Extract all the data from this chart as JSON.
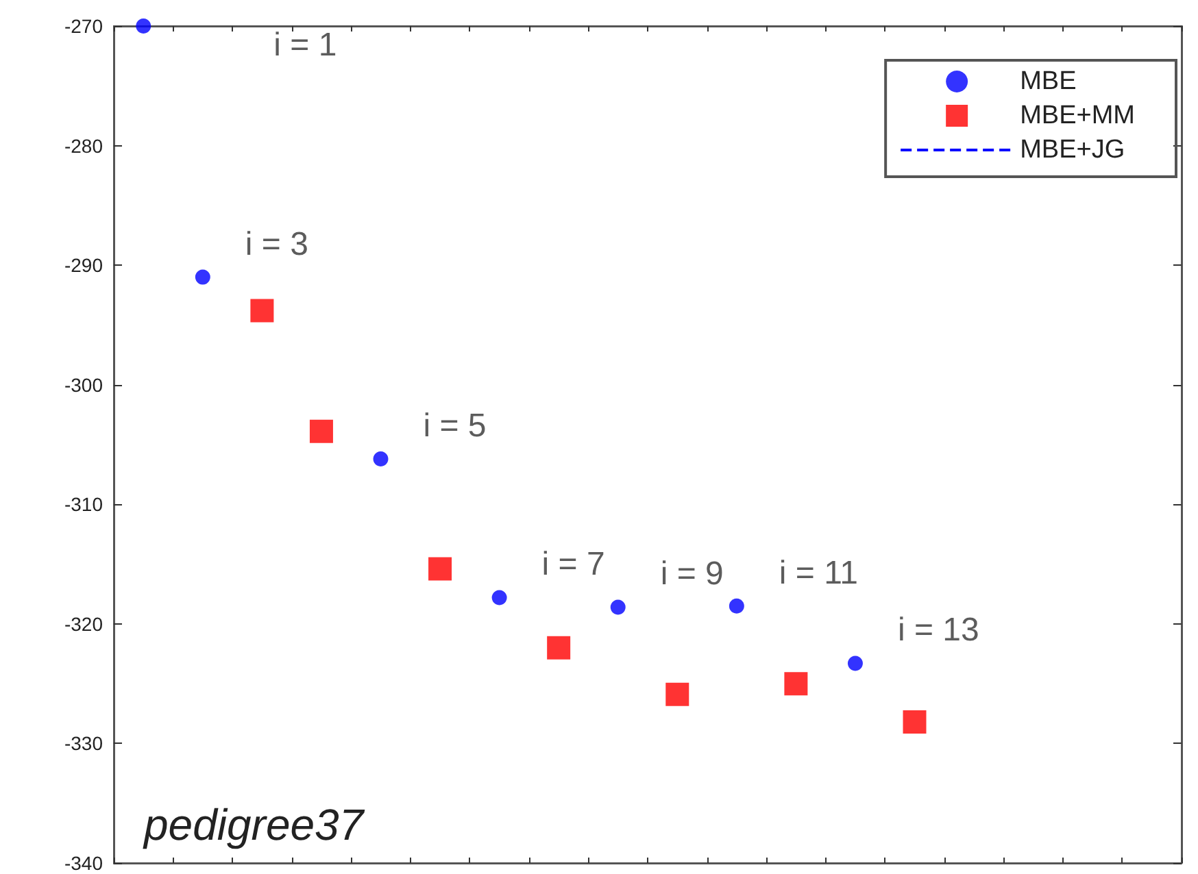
{
  "chart_data": {
    "type": "scatter",
    "grid": false,
    "legend": "top right",
    "tick_labels": "y",
    "categories": [
      null,
      null,
      null,
      null,
      null,
      null,
      null,
      null,
      null,
      null,
      null,
      null,
      null,
      null,
      null,
      null,
      null,
      null
    ],
    "ylim": [
      -340,
      -270
    ],
    "yticks": [
      -340,
      -330,
      -320,
      -310,
      -300,
      -290,
      -280,
      -270
    ],
    "series": [
      {
        "name": "MBE",
        "type": "scatter",
        "marker": "circle",
        "color": "#0000ff",
        "values": [
          -270,
          -291,
          null,
          null,
          -306.2,
          null,
          -317.8,
          null,
          -318.6,
          null,
          -318.5,
          null,
          -323.3,
          null,
          null,
          null,
          null,
          null
        ]
      },
      {
        "name": "MBE+MM",
        "type": "scatter",
        "marker": "square",
        "color": "#ff0000",
        "values": [
          null,
          null,
          -293.8,
          -303.9,
          null,
          -315.4,
          null,
          -322,
          null,
          -325.9,
          null,
          -325,
          null,
          -328.2,
          null,
          null,
          null,
          null
        ]
      },
      {
        "name": "MBE+JG",
        "type": "line",
        "marker": "none",
        "line_style": "dashed",
        "color": "#0000ff",
        "values": [
          null,
          null,
          null,
          null,
          null,
          null,
          null,
          null,
          null,
          null,
          null,
          null,
          null,
          null,
          null,
          null,
          null,
          null
        ]
      }
    ],
    "annotations": [
      "i = 1",
      "i = 3",
      "i = 5",
      "i = 7",
      "i = 9",
      "i = 11",
      "i = 13",
      "pedigree37"
    ]
  }
}
